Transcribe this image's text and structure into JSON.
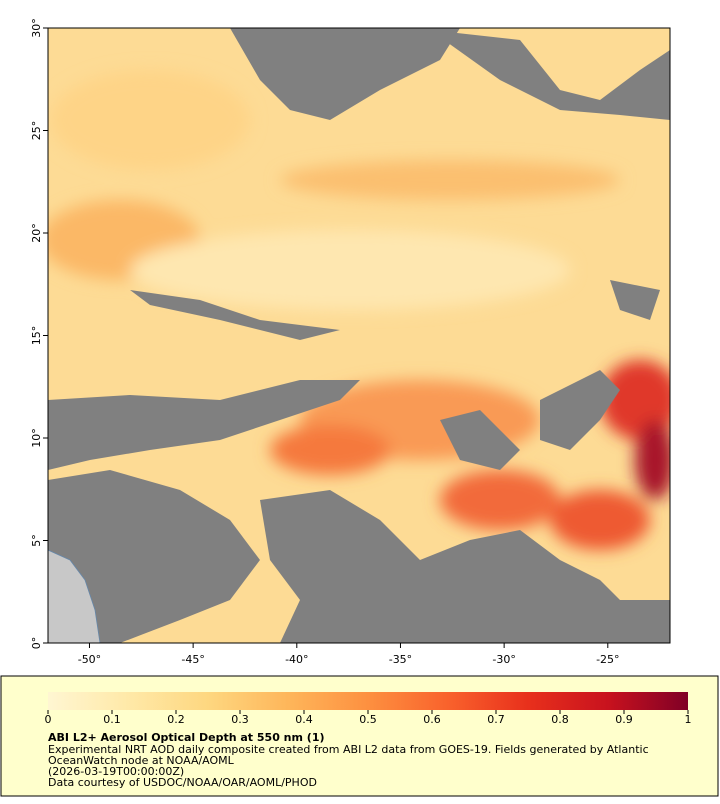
{
  "chart_data": {
    "type": "map",
    "title": "ABI L2+ Aerosol Optical Depth at 550 nm (1)",
    "caption": [
      "Experimental NRT AOD daily composite created from ABI L2 data from GOES-19. Fields generated by Atlantic",
      "OceanWatch node at NOAA/AOML",
      "(2026-03-19T00:00:00Z)",
      "Data courtesy of USDOC/NOAA/OAR/AOML/PHOD"
    ],
    "xlim": [
      -52,
      -22
    ],
    "ylim": [
      0,
      30
    ],
    "xticks": [
      {
        "value": -50,
        "label": "-50°"
      },
      {
        "value": -45,
        "label": "-45°"
      },
      {
        "value": -40,
        "label": "-40°"
      },
      {
        "value": -35,
        "label": "-35°"
      },
      {
        "value": -30,
        "label": "-30°"
      },
      {
        "value": -25,
        "label": "-25°"
      }
    ],
    "yticks": [
      {
        "value": 0,
        "label": "0°"
      },
      {
        "value": 5,
        "label": "5°"
      },
      {
        "value": 10,
        "label": "10°"
      },
      {
        "value": 15,
        "label": "15°"
      },
      {
        "value": 20,
        "label": "20°"
      },
      {
        "value": 25,
        "label": "25°"
      },
      {
        "value": 30,
        "label": "30°"
      }
    ],
    "colorbar": {
      "range": [
        0,
        1
      ],
      "ticks": [
        0,
        0.1,
        0.2,
        0.3,
        0.4,
        0.5,
        0.6,
        0.7,
        0.8,
        0.9,
        1
      ],
      "colors": [
        "#fff6d2",
        "#ffe9a8",
        "#fed780",
        "#feb65a",
        "#fd9040",
        "#f9622c",
        "#e8301c",
        "#c8121e",
        "#800026"
      ]
    }
  }
}
